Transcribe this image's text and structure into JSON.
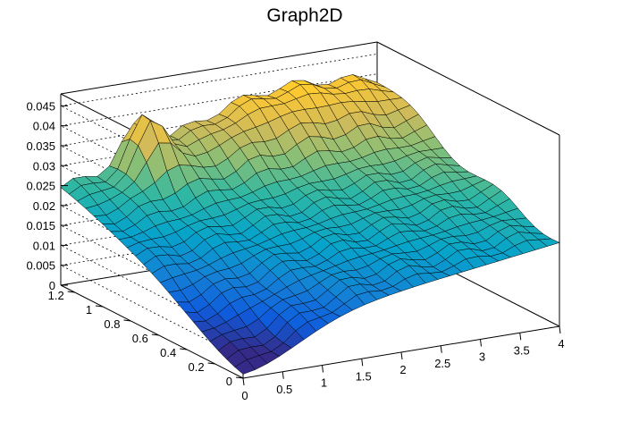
{
  "chart_data": {
    "type": "surface",
    "title": "Graph2D",
    "x_ticks": [
      "0",
      "0.5",
      "1",
      "1.5",
      "2",
      "2.5",
      "3",
      "3.5",
      "4"
    ],
    "y_ticks": [
      "0",
      "0.2",
      "0.4",
      "0.6",
      "0.8",
      "1",
      "1.2"
    ],
    "z_ticks": [
      "0",
      "0.005",
      "0.01",
      "0.015",
      "0.02",
      "0.025",
      "0.03",
      "0.035",
      "0.04",
      "0.045"
    ],
    "xlim": [
      0,
      4
    ],
    "ylim": [
      0,
      1.3
    ],
    "zlim": [
      0,
      0.048
    ],
    "grid": true,
    "palette": [
      "#352a87",
      "#0f5cdd",
      "#1481d6",
      "#06a4ca",
      "#2eb7a4",
      "#87bf77",
      "#d1bb59",
      "#fec832",
      "#f9fb0e"
    ],
    "surface_description_values": {
      "peak_near_x_y": [
        [
          0.9,
          1.15,
          0.046
        ],
        [
          3.5,
          1.2,
          0.045
        ]
      ],
      "valley_near_x_y": [
        [
          0.1,
          0.05,
          0.004
        ]
      ]
    }
  }
}
